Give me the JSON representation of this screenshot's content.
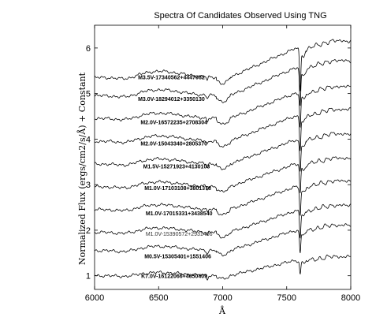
{
  "chart_data": {
    "type": "line",
    "title": "Spectra Of Candidates Observed Using TNG",
    "xlabel": "Å",
    "ylabel": "Normalized Flux (ergs/cm2/s/Å) + Constant",
    "xlim": [
      6000,
      8000
    ],
    "ylim": [
      0.7,
      6.5
    ],
    "xticks": [
      6000,
      6500,
      7000,
      7500,
      8000
    ],
    "yticks": [
      1,
      2,
      3,
      4,
      5,
      6
    ],
    "xtick_labels": [
      "6000",
      "6500",
      "7000",
      "7500",
      "8000"
    ],
    "ytick_labels": [
      "1",
      "2",
      "3",
      "4",
      "5",
      "6"
    ],
    "grid": false,
    "series": [
      {
        "name": "K7.0V-16122066+4650409",
        "label": "K7.0V-16122066+4650409",
        "offset": 1.0,
        "label_x": 6880,
        "label_y": 0.95,
        "depth": 0.25,
        "scale": 1.2
      },
      {
        "name": "M0.5V-15305401+1551406",
        "label": "M0.5V-15305401+1551406",
        "offset": 1.55,
        "label_x": 6910,
        "label_y": 1.38,
        "depth": 0.45,
        "scale": 1.6
      },
      {
        "name": "M1.0V-15390572+2931406",
        "label": "M1.0V-15390572+2931406",
        "offset": 1.95,
        "label_x": 6920,
        "label_y": 1.88,
        "depth": 0.5,
        "scale": 1.7,
        "thin": true
      },
      {
        "name": "M1.0V-17015331+3438540",
        "label": "M1.0V-17015331+3438540",
        "offset": 2.45,
        "label_x": 6920,
        "label_y": 2.33,
        "depth": 0.55,
        "scale": 1.8
      },
      {
        "name": "M1.0V-17103108+3801378",
        "label": "M1.0V-17103108+3801378",
        "offset": 2.95,
        "label_x": 6910,
        "label_y": 2.88,
        "depth": 0.55,
        "scale": 1.8
      },
      {
        "name": "M1.5V-15271923+4130103",
        "label": "M1.5V-15271923+4130103",
        "offset": 3.45,
        "label_x": 6900,
        "label_y": 3.36,
        "depth": 0.6,
        "scale": 1.9
      },
      {
        "name": "M2.0V-15043340+2805370",
        "label": "M2.0V-15043340+2805370",
        "offset": 3.95,
        "label_x": 6880,
        "label_y": 3.86,
        "depth": 0.65,
        "scale": 2.0
      },
      {
        "name": "M2.0V-16572235+2708304",
        "label": "M2.0V-16572235+2708304",
        "offset": 4.45,
        "label_x": 6880,
        "label_y": 4.33,
        "depth": 0.65,
        "scale": 2.0
      },
      {
        "name": "M3.0V-18294012+3350130",
        "label": "M3.0V-18294012+3350130",
        "offset": 4.95,
        "label_x": 6860,
        "label_y": 4.84,
        "depth": 0.75,
        "scale": 2.2
      },
      {
        "name": "M3.5V-17340562+4447082",
        "label": "M3.5V-17340562+4447082",
        "offset": 5.35,
        "label_x": 6860,
        "label_y": 5.31,
        "depth": 0.8,
        "scale": 2.3
      }
    ]
  }
}
